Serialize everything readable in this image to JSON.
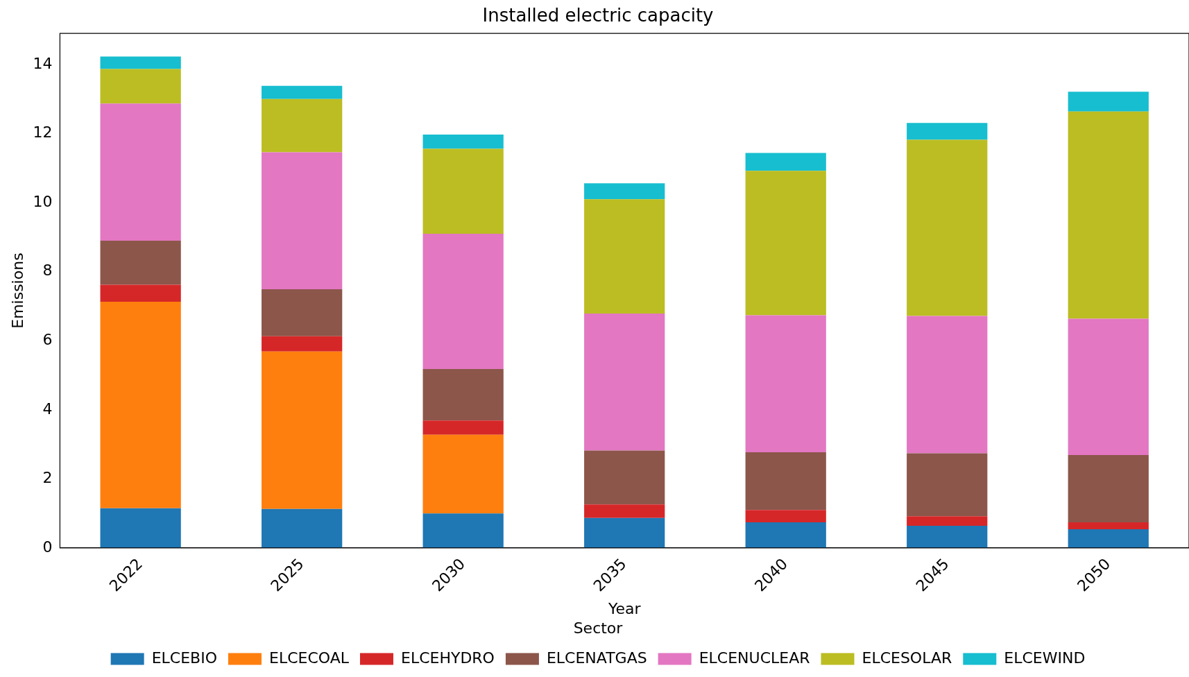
{
  "chart_data": {
    "type": "bar",
    "title": "Installed electric capacity",
    "xlabel": "Year",
    "ylabel": "Emissions",
    "legend_title": "Sector",
    "categories": [
      "2022",
      "2025",
      "2030",
      "2035",
      "2040",
      "2045",
      "2050"
    ],
    "stacked": true,
    "legend": "bottom",
    "grid": false,
    "ylim": [
      0,
      14.9
    ],
    "yticks": [
      0,
      2,
      4,
      6,
      8,
      10,
      12,
      14
    ],
    "series": [
      {
        "name": "ELCEBIO",
        "color": "#1f77b4",
        "values": [
          1.15,
          1.13,
          1.0,
          0.87,
          0.74,
          0.64,
          0.54
        ]
      },
      {
        "name": "ELCECOAL",
        "color": "#ff7f0e",
        "values": [
          5.98,
          4.56,
          2.28,
          0,
          0,
          0,
          0
        ]
      },
      {
        "name": "ELCEHYDRO",
        "color": "#d62728",
        "values": [
          0.49,
          0.44,
          0.41,
          0.39,
          0.36,
          0.28,
          0.2
        ]
      },
      {
        "name": "ELCENATGAS",
        "color": "#8c564b",
        "values": [
          1.28,
          1.36,
          1.49,
          1.56,
          1.67,
          1.82,
          1.95
        ]
      },
      {
        "name": "ELCENUCLEAR",
        "color": "#e377c2",
        "values": [
          3.97,
          3.97,
          3.92,
          3.97,
          3.97,
          3.98,
          3.95
        ]
      },
      {
        "name": "ELCESOLAR",
        "color": "#bcbd22",
        "values": [
          1.0,
          1.54,
          2.46,
          3.31,
          4.18,
          5.1,
          6.0
        ]
      },
      {
        "name": "ELCEWIND",
        "color": "#17becf",
        "values": [
          0.36,
          0.38,
          0.41,
          0.46,
          0.52,
          0.49,
          0.57
        ]
      }
    ]
  }
}
